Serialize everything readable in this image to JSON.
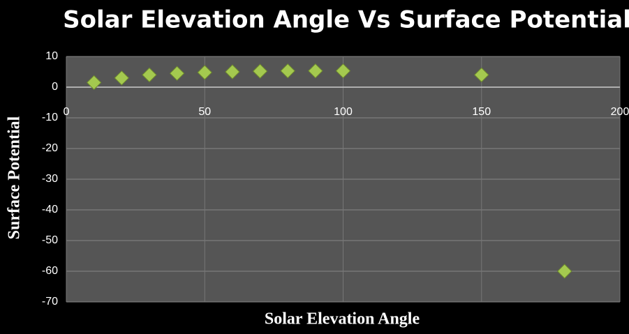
{
  "chart_data": {
    "type": "scatter",
    "title": "Solar Elevation Angle Vs Surface Potential",
    "x_label": "Solar Elevation Angle",
    "y_label": "Surface Potential",
    "x": [
      10,
      20,
      30,
      40,
      50,
      60,
      70,
      80,
      90,
      100,
      150,
      180
    ],
    "values": [
      1.5,
      3,
      4,
      4.5,
      4.8,
      5,
      5.2,
      5.3,
      5.3,
      5.3,
      4,
      -60
    ],
    "color": "#a4c94f",
    "xlim": [
      0,
      200
    ],
    "xticks": [
      0,
      50,
      100,
      150,
      200
    ],
    "ylim": [
      -70,
      10
    ],
    "yticks": [
      10,
      0,
      -10,
      -20,
      -30,
      -40,
      -50,
      -60,
      -70
    ],
    "grid": true
  }
}
